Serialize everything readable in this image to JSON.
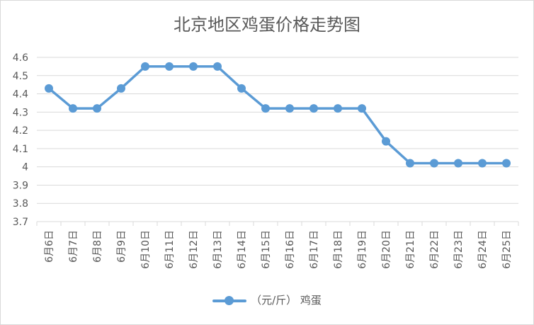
{
  "chart_data": {
    "type": "line",
    "title": "北京地区鸡蛋价格走势图",
    "categories": [
      "6月6日",
      "6月7日",
      "6月8日",
      "6月9日",
      "6月10日",
      "6月11日",
      "6月12日",
      "6月13日",
      "6月14日",
      "6月15日",
      "6月16日",
      "6月17日",
      "6月18日",
      "6月19日",
      "6月20日",
      "6月21日",
      "6月22日",
      "6月23日",
      "6月24日",
      "6月25日"
    ],
    "series": [
      {
        "name": "（元/斤） 鸡蛋",
        "color": "#5b9bd5",
        "values": [
          4.43,
          4.32,
          4.32,
          4.43,
          4.55,
          4.55,
          4.55,
          4.55,
          4.43,
          4.32,
          4.32,
          4.32,
          4.32,
          4.32,
          4.14,
          4.02,
          4.02,
          4.02,
          4.02,
          4.02
        ]
      }
    ],
    "ylim": [
      3.7,
      4.6
    ],
    "yticks": [
      "3.7",
      "3.8",
      "3.9",
      "4",
      "4.1",
      "4.2",
      "4.3",
      "4.4",
      "4.5",
      "4.6"
    ],
    "grid": true,
    "legend_position": "bottom"
  }
}
